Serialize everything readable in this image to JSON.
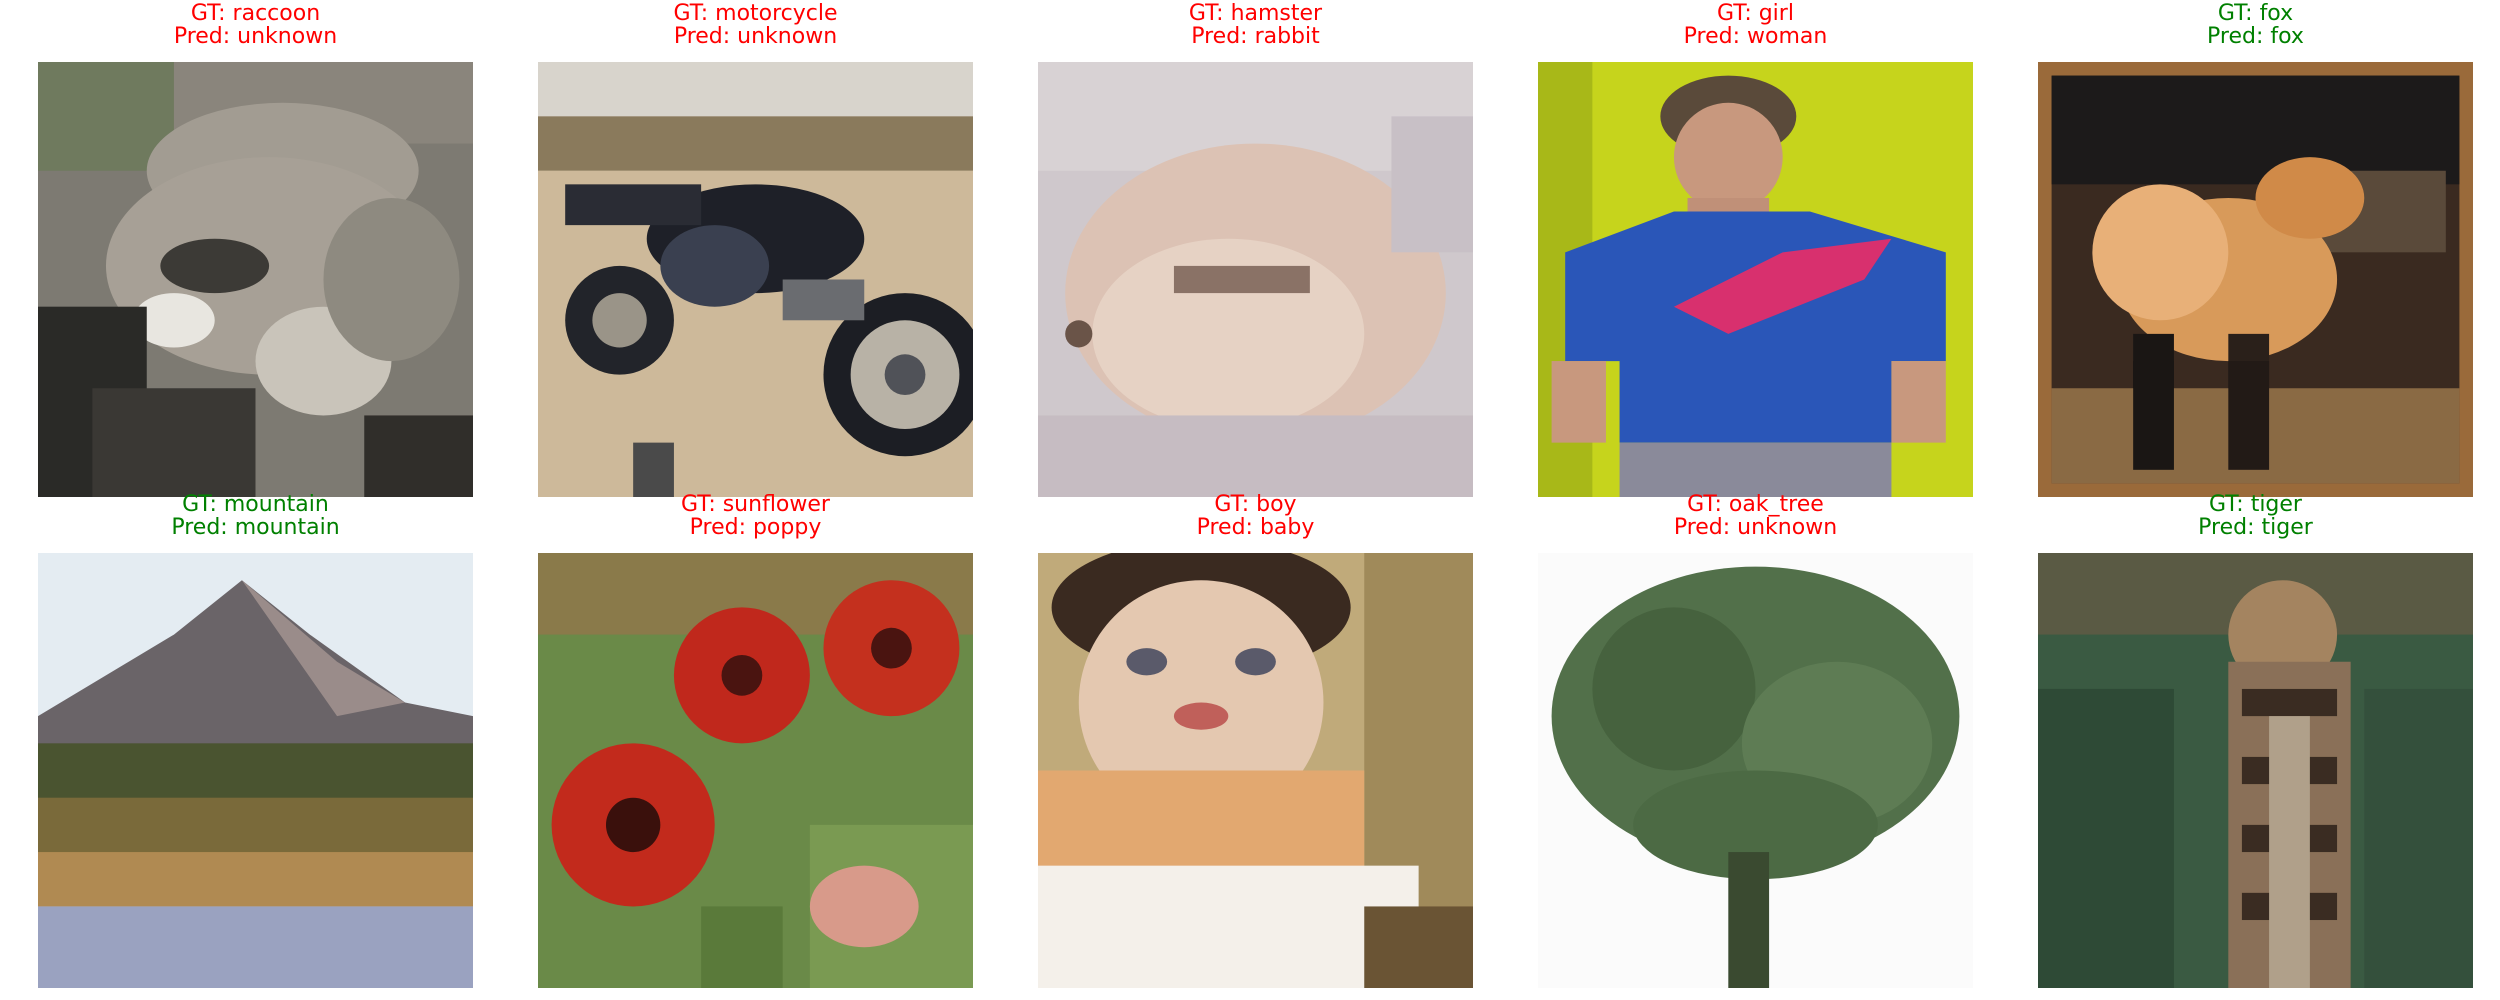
{
  "panels": [
    {
      "gt": "GT: raccoon",
      "pred": "Pred: unknown",
      "correct": false,
      "subject": "raccoon"
    },
    {
      "gt": "GT: motorcycle",
      "pred": "Pred: unknown",
      "correct": false,
      "subject": "motorcycle"
    },
    {
      "gt": "GT: hamster",
      "pred": "Pred: rabbit",
      "correct": false,
      "subject": "hamster"
    },
    {
      "gt": "GT: girl",
      "pred": "Pred: woman",
      "correct": false,
      "subject": "girl"
    },
    {
      "gt": "GT: fox",
      "pred": "Pred: fox",
      "correct": true,
      "subject": "fox"
    },
    {
      "gt": "GT: mountain",
      "pred": "Pred: mountain",
      "correct": true,
      "subject": "mountain"
    },
    {
      "gt": "GT: sunflower",
      "pred": "Pred: poppy",
      "correct": false,
      "subject": "sunflower"
    },
    {
      "gt": "GT: boy",
      "pred": "Pred: baby",
      "correct": false,
      "subject": "boy"
    },
    {
      "gt": "GT: oak_tree",
      "pred": "Pred: unknown",
      "correct": false,
      "subject": "oak_tree"
    },
    {
      "gt": "GT: tiger",
      "pred": "Pred: tiger",
      "correct": true,
      "subject": "tiger"
    }
  ],
  "colors": {
    "correct": "#008000",
    "wrong": "#ff0000"
  }
}
